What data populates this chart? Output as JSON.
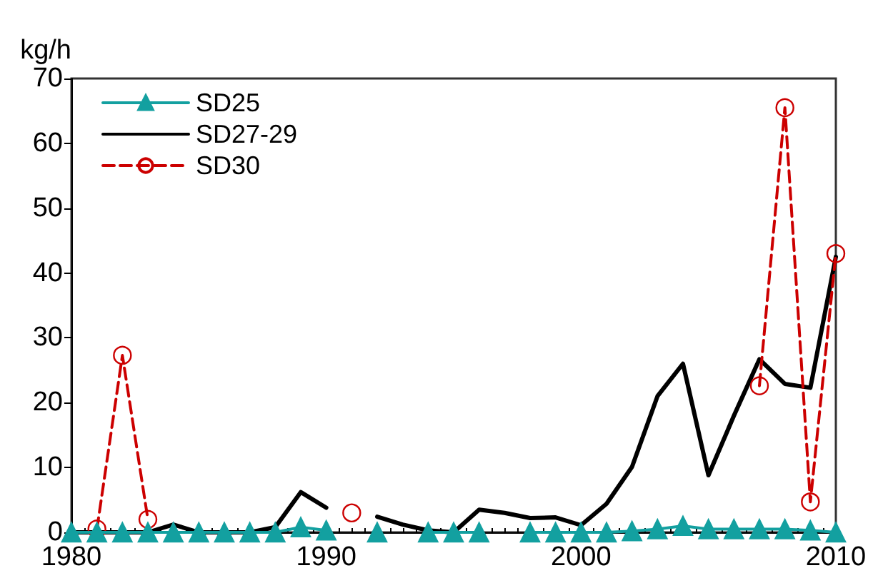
{
  "chart_data": {
    "type": "line",
    "ylabel": "kg/h",
    "x": [
      1980,
      1981,
      1982,
      1983,
      1984,
      1985,
      1986,
      1987,
      1988,
      1989,
      1990,
      1991,
      1992,
      1993,
      1994,
      1995,
      1996,
      1997,
      1998,
      1999,
      2000,
      2001,
      2002,
      2003,
      2004,
      2005,
      2006,
      2007,
      2008,
      2009,
      2010
    ],
    "series": [
      {
        "name": "SD25",
        "color": "#13a0a0",
        "marker": "triangle",
        "line_style": "solid",
        "values": [
          0,
          0,
          0,
          0,
          0,
          0,
          0,
          0,
          0,
          0.8,
          0.3,
          null,
          0,
          null,
          0,
          0,
          0,
          null,
          0,
          0,
          0,
          0,
          0.2,
          0.5,
          1,
          0.5,
          0.5,
          0.5,
          0.5,
          0.3,
          0
        ]
      },
      {
        "name": "SD27-29",
        "color": "#000000",
        "marker": "none",
        "line_style": "solid",
        "values": [
          0,
          0,
          0,
          0,
          1.2,
          0,
          0,
          0,
          0.8,
          6.2,
          3.8,
          null,
          2.4,
          1.2,
          0.3,
          0,
          3.5,
          3,
          2.2,
          2.3,
          1.1,
          4.4,
          10.1,
          21,
          26,
          8.8,
          18,
          26.7,
          22.9,
          22.3,
          42.5
        ]
      },
      {
        "name": "SD30",
        "color": "#cc0000",
        "marker": "circle",
        "line_style": "dashed",
        "values": [
          null,
          0.5,
          27.3,
          2,
          null,
          null,
          null,
          null,
          null,
          null,
          null,
          3,
          null,
          null,
          null,
          null,
          null,
          null,
          null,
          null,
          null,
          null,
          null,
          null,
          null,
          null,
          null,
          22.6,
          65.5,
          4.7,
          43
        ]
      }
    ],
    "xlim": [
      1980,
      2010
    ],
    "xticks": [
      1980,
      1990,
      2000,
      2010
    ],
    "ylim": [
      0,
      70
    ],
    "yticks": [
      0,
      10,
      20,
      30,
      40,
      50,
      60,
      70
    ],
    "grid": false,
    "legend": "top left"
  }
}
